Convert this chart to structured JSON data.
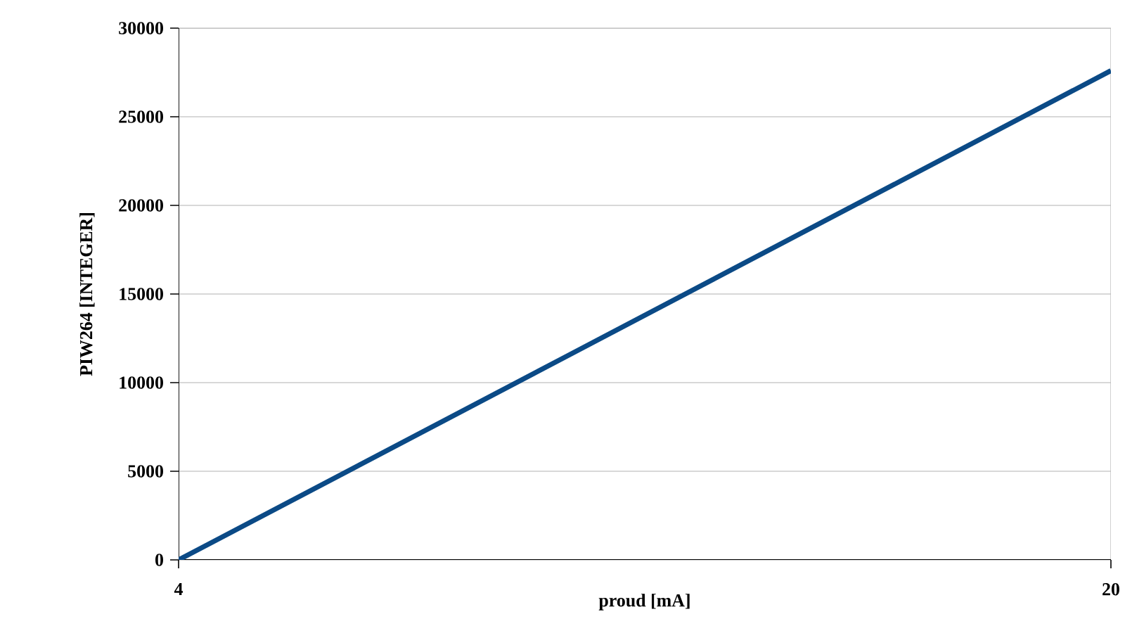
{
  "chart_data": {
    "type": "line",
    "xlabel": "proud [mA]",
    "ylabel": "PIW264 [INTEGER]",
    "x": [
      4,
      20
    ],
    "series": [
      {
        "color": "#0b4a86",
        "values": [
          0,
          27600
        ]
      }
    ],
    "xlim": [
      4,
      20
    ],
    "xticks": [
      4,
      20
    ],
    "ylim": [
      0,
      30000
    ],
    "yticks": [
      0,
      5000,
      10000,
      15000,
      20000,
      25000,
      30000
    ],
    "grid": "y",
    "marker": "none",
    "line_style": "solid"
  }
}
